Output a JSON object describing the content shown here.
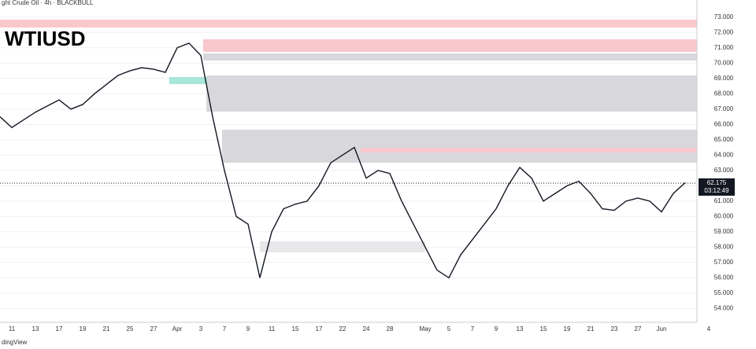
{
  "header": "ght Crude Oil · 4h · BLACKBULL",
  "footer": "dingView",
  "chart_data": {
    "type": "line",
    "title": "WTIUSD",
    "color": "#131722",
    "categories": [
      null,
      "11",
      null,
      "13",
      null,
      "17",
      null,
      "19",
      null,
      "21",
      null,
      "25",
      null,
      "27",
      null,
      "Apr",
      null,
      "3",
      null,
      "7",
      null,
      "9",
      null,
      "11",
      null,
      "15",
      null,
      "17",
      null,
      "22",
      null,
      "24",
      null,
      "28",
      null,
      null,
      "May",
      null,
      "5",
      null,
      "7",
      null,
      "9",
      null,
      "13",
      null,
      "15",
      null,
      "19",
      null,
      "21",
      null,
      "23",
      null,
      "27",
      null,
      "Jun",
      null,
      null,
      null,
      "4"
    ],
    "values": [
      66.5,
      65.8,
      66.3,
      66.8,
      67.2,
      67.6,
      67.0,
      67.3,
      68.0,
      68.6,
      69.2,
      69.5,
      69.7,
      69.6,
      69.4,
      71.0,
      71.3,
      70.5,
      66.5,
      63.0,
      60.0,
      59.5,
      56.0,
      59.0,
      60.5,
      60.8,
      61.0,
      62.0,
      63.5,
      64.0,
      64.5,
      62.5,
      63.0,
      62.8,
      61.0,
      59.5,
      58.0,
      56.5,
      56.0,
      57.5,
      58.5,
      59.5,
      60.5,
      62.0,
      63.2,
      62.5,
      61.0,
      61.5,
      62.0,
      62.3,
      61.5,
      60.5,
      60.4,
      61.0,
      61.2,
      61.0,
      60.3,
      61.5,
      62.2,
      null,
      null
    ],
    "ylim": [
      53.1,
      73.5
    ],
    "yticks": [
      {
        "value": 54,
        "label": "54.000"
      },
      {
        "value": 55,
        "label": "55.000"
      },
      {
        "value": 56,
        "label": "56.000"
      },
      {
        "value": 57,
        "label": "57.000"
      },
      {
        "value": 58,
        "label": "58.000"
      },
      {
        "value": 59,
        "label": "59.000"
      },
      {
        "value": 60,
        "label": "60.000"
      },
      {
        "value": 61,
        "label": "61.000"
      },
      {
        "value": 62,
        "label": "62.000"
      },
      {
        "value": 63,
        "label": "63.000"
      },
      {
        "value": 64,
        "label": "64.000"
      },
      {
        "value": 65,
        "label": "65.000"
      },
      {
        "value": 66,
        "label": "66.000"
      },
      {
        "value": 67,
        "label": "67.000"
      },
      {
        "value": 68,
        "label": "68.000"
      },
      {
        "value": 69,
        "label": "69.000"
      },
      {
        "value": 70,
        "label": "70.000"
      },
      {
        "value": 71,
        "label": "71.000"
      },
      {
        "value": 72,
        "label": "72.000"
      },
      {
        "value": 73,
        "label": "73.000"
      }
    ],
    "price_label": {
      "value": 62.175,
      "label": "62.175",
      "countdown": "03:12:49"
    },
    "grid": true
  }
}
